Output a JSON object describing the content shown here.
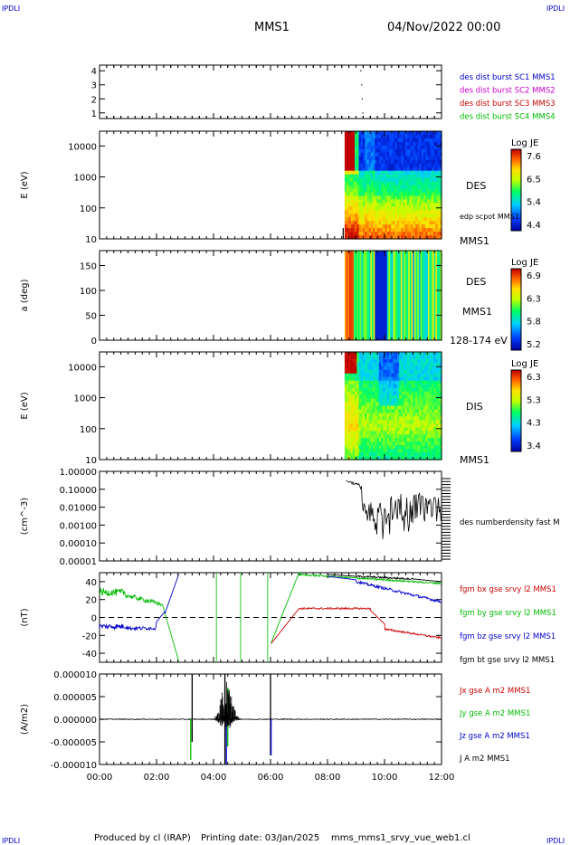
{
  "header": {
    "corner_left": "IPDLI",
    "corner_right": "IPDLI",
    "mission": "MMS1",
    "datetime": "04/Nov/2022 00:00"
  },
  "footer": {
    "produced_by": "Produced by cl (IRAP)",
    "printing_date": "Printing date: 03/Jan/2025",
    "filename": "mms_mms1_srvy_vue_web1.cl",
    "corner_left": "IPDLI",
    "corner_right": "IPDLI"
  },
  "time_axis": {
    "ticks": [
      "00:00",
      "02:00",
      "04:00",
      "06:00",
      "08:00",
      "10:00",
      "12:00"
    ],
    "range_hours": [
      0,
      12
    ]
  },
  "colors": {
    "blue": "#0000cc",
    "magenta": "#cc00cc",
    "red": "#cc0000",
    "green": "#00bb00",
    "black": "#000000"
  },
  "chart_data": [
    {
      "type": "scatter",
      "panel": "burst",
      "yticks": [
        "4",
        "3",
        "2",
        "1"
      ],
      "ylim": [
        0.6,
        4.4
      ],
      "legend": [
        {
          "label": "des dist burst SC1 MMS1",
          "color": "#0000cc"
        },
        {
          "label": "des dist burst SC2 MMS2",
          "color": "#cc00cc"
        },
        {
          "label": "des dist burst SC3 MMS3",
          "color": "#cc0000"
        },
        {
          "label": "des dist burst SC4 MMS4",
          "color": "#00bb00"
        }
      ],
      "points": [
        {
          "x": 9.15,
          "y": 4.0
        },
        {
          "x": 9.18,
          "y": 3.0
        },
        {
          "x": 9.2,
          "y": 2.0
        },
        {
          "x": 9.22,
          "y": 1.0
        }
      ]
    },
    {
      "type": "heatmap",
      "panel": "des-energy",
      "ylabel": "E (eV)",
      "yticks": [
        "10000",
        "1000",
        "100",
        "10"
      ],
      "ylim": [
        10,
        30000
      ],
      "log_y": true,
      "data_start_hour": 8.6,
      "side_labels": [
        "DES",
        "edp scpot MMS1",
        "MMS1"
      ],
      "colorbar": {
        "title": "Log JE",
        "ticks": [
          "7.6",
          "6.5",
          "5.4",
          "4.4"
        ],
        "range": [
          4.4,
          7.6
        ]
      }
    },
    {
      "type": "heatmap",
      "panel": "des-pitch",
      "ylabel": "a (deg)",
      "yticks": [
        "150",
        "100",
        "50",
        "0"
      ],
      "ylim": [
        0,
        180
      ],
      "data_start_hour": 8.6,
      "side_labels": [
        "DES",
        "MMS1",
        "128-174 eV"
      ],
      "colorbar": {
        "title": "Log JE",
        "ticks": [
          "6.9",
          "6.3",
          "5.8",
          "5.2"
        ],
        "range": [
          5.2,
          6.9
        ]
      }
    },
    {
      "type": "heatmap",
      "panel": "dis-energy",
      "ylabel": "E (eV)",
      "yticks": [
        "10000",
        "1000",
        "100",
        "10"
      ],
      "ylim": [
        10,
        30000
      ],
      "log_y": true,
      "data_start_hour": 8.6,
      "side_labels": [
        "DIS",
        "MMS1"
      ],
      "colorbar": {
        "title": "Log JE",
        "ticks": [
          "6.3",
          "5.3",
          "4.3",
          "3.4"
        ],
        "range": [
          3.4,
          6.3
        ]
      }
    },
    {
      "type": "line",
      "panel": "density",
      "ylabel": "(cm^-3)",
      "yticks": [
        "1.00000",
        "0.10000",
        "0.01000",
        "0.00100",
        "0.00010",
        "0.00001"
      ],
      "ylim": [
        1e-05,
        1.0
      ],
      "log_y": true,
      "series": [
        {
          "name": "des numberdensity fast M",
          "color": "#000000"
        }
      ]
    },
    {
      "type": "line",
      "panel": "fgm",
      "ylabel": "(nT)",
      "yticks": [
        "40",
        "20",
        "0",
        "-20",
        "-40"
      ],
      "ylim": [
        -50,
        50
      ],
      "series": [
        {
          "name": "fgm bx gse srvy l2 MMS1",
          "color": "#cc0000"
        },
        {
          "name": "fgm by gse srvy l2 MMS1",
          "color": "#00bb00"
        },
        {
          "name": "fgm bz gse srvy l2 MMS1",
          "color": "#0000cc"
        },
        {
          "name": "fgm bt gse srvy l2 MMS1",
          "color": "#000000"
        }
      ]
    },
    {
      "type": "line",
      "panel": "current",
      "ylabel": "(A/m2)",
      "yticks": [
        "0.000010",
        "0.000005",
        "0.000000",
        "-0.000005",
        "-0.000010"
      ],
      "ylim": [
        -1e-05,
        1e-05
      ],
      "series": [
        {
          "name": "Jx gse A m2 MMS1",
          "color": "#cc0000"
        },
        {
          "name": "Jy gse A m2 MMS1",
          "color": "#00bb00"
        },
        {
          "name": "Jz gse A m2 MMS1",
          "color": "#0000cc"
        },
        {
          "name": "J A m2 MMS1",
          "color": "#000000"
        }
      ]
    }
  ]
}
